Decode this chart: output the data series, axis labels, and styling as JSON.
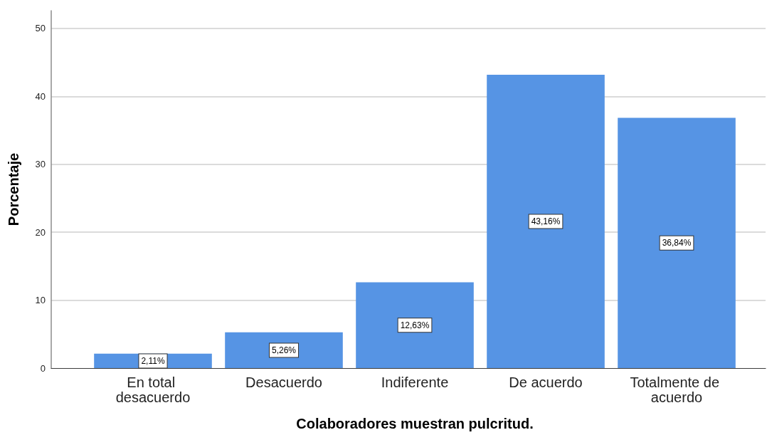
{
  "chart_data": {
    "type": "bar",
    "xlabel": "Colaboradores muestran pulcritud.",
    "ylabel": "Porcentaje",
    "categories": [
      "En total desacuerdo",
      "Desacuerdo",
      "Indiferente",
      "De acuerdo",
      "Totalmente de acuerdo"
    ],
    "values": [
      2.11,
      5.26,
      12.63,
      43.16,
      36.84
    ],
    "color": "#5694e4",
    "value_labels": [
      "2,11%",
      "5,26%",
      "12,63%",
      "43,16%",
      "36,84%"
    ],
    "ylim": [
      0,
      52.6
    ],
    "yticks": [
      0,
      10,
      20,
      30,
      40,
      50
    ],
    "grid": "y"
  }
}
